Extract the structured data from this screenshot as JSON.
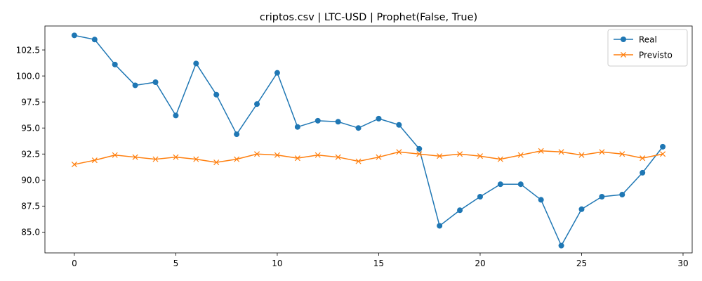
{
  "chart_data": {
    "type": "line",
    "title": "criptos.csv | LTC-USD | Prophet(False, True)",
    "xlabel": "",
    "ylabel": "",
    "x": [
      0,
      1,
      2,
      3,
      4,
      5,
      6,
      7,
      8,
      9,
      10,
      11,
      12,
      13,
      14,
      15,
      16,
      17,
      18,
      19,
      20,
      21,
      22,
      23,
      24,
      25,
      26,
      27,
      28,
      29
    ],
    "xlim": [
      -1.45,
      30.45
    ],
    "ylim": [
      83.0,
      104.8
    ],
    "xticks": [
      0,
      5,
      10,
      15,
      20,
      25,
      30
    ],
    "xtick_labels": [
      "0",
      "5",
      "10",
      "15",
      "20",
      "25",
      "30"
    ],
    "yticks": [
      85.0,
      87.5,
      90.0,
      92.5,
      95.0,
      97.5,
      100.0,
      102.5
    ],
    "ytick_labels": [
      "85.0",
      "87.5",
      "90.0",
      "92.5",
      "95.0",
      "97.5",
      "100.0",
      "102.5"
    ],
    "grid": false,
    "legend_position": "top-right",
    "series": [
      {
        "name": "Real",
        "color": "#1f77b4",
        "marker": "circle",
        "values": [
          103.9,
          103.5,
          101.1,
          99.1,
          99.4,
          96.2,
          101.2,
          98.2,
          94.4,
          97.3,
          100.3,
          95.1,
          95.7,
          95.6,
          95.0,
          95.9,
          95.3,
          93.0,
          85.6,
          87.1,
          88.4,
          89.6,
          89.6,
          88.1,
          83.7,
          87.2,
          88.4,
          88.6,
          90.7,
          93.2
        ]
      },
      {
        "name": "Previsto",
        "color": "#ff7f0e",
        "marker": "x",
        "values": [
          91.5,
          91.9,
          92.4,
          92.2,
          92.0,
          92.2,
          92.0,
          91.7,
          92.0,
          92.5,
          92.4,
          92.1,
          92.4,
          92.2,
          91.8,
          92.2,
          92.7,
          92.5,
          92.3,
          92.5,
          92.3,
          92.0,
          92.4,
          92.8,
          92.7,
          92.4,
          92.7,
          92.5,
          92.1,
          92.5
        ]
      }
    ]
  }
}
